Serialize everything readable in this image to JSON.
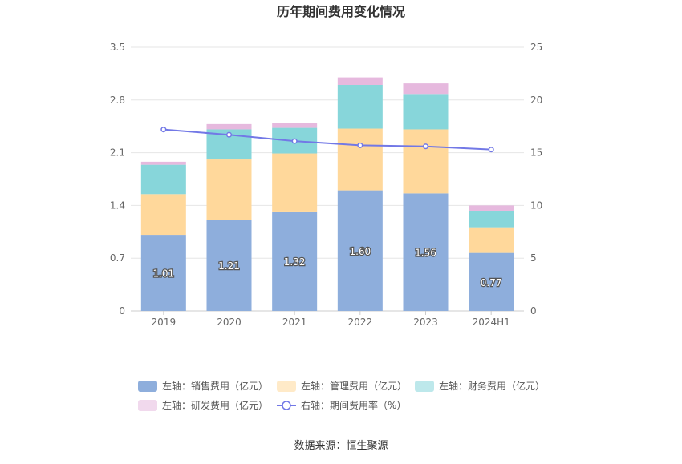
{
  "chart_data": {
    "type": "bar",
    "title": "历年期间费用变化情况",
    "categories": [
      "2019",
      "2020",
      "2021",
      "2022",
      "2023",
      "2024H1"
    ],
    "left_axis": {
      "ticks": [
        "0",
        "0.7",
        "1.4",
        "2.1",
        "2.8",
        "3.5"
      ],
      "ylim": [
        0,
        3.5
      ]
    },
    "right_axis": {
      "ticks": [
        "0",
        "5",
        "10",
        "15",
        "20",
        "25"
      ],
      "ylim": [
        0,
        25
      ]
    },
    "stacked_series": [
      {
        "name": "左轴：销售费用（亿元）",
        "color": "#8eaedc",
        "values": [
          1.01,
          1.21,
          1.32,
          1.6,
          1.56,
          0.77
        ],
        "labels": [
          "1.01",
          "1.21",
          "1.32",
          "1.60",
          "1.56",
          "0.77"
        ]
      },
      {
        "name": "左轴：管理费用（亿元）",
        "color": "#ffd89b",
        "values": [
          0.54,
          0.8,
          0.77,
          0.82,
          0.85,
          0.34
        ]
      },
      {
        "name": "左轴：财务费用（亿元）",
        "color": "#87d6da",
        "values": [
          0.39,
          0.4,
          0.34,
          0.58,
          0.47,
          0.22
        ]
      },
      {
        "name": "左轴：研发费用（亿元）",
        "color": "#e6b9de",
        "values": [
          0.04,
          0.07,
          0.07,
          0.1,
          0.14,
          0.07
        ]
      }
    ],
    "line_series": {
      "name": "右轴：期间费用率（%）",
      "color": "#7278e6",
      "values": [
        17.2,
        16.7,
        16.1,
        15.7,
        15.6,
        15.3
      ]
    },
    "legend_position": "bottom",
    "grid": true
  },
  "source": "数据来源：恒生聚源"
}
